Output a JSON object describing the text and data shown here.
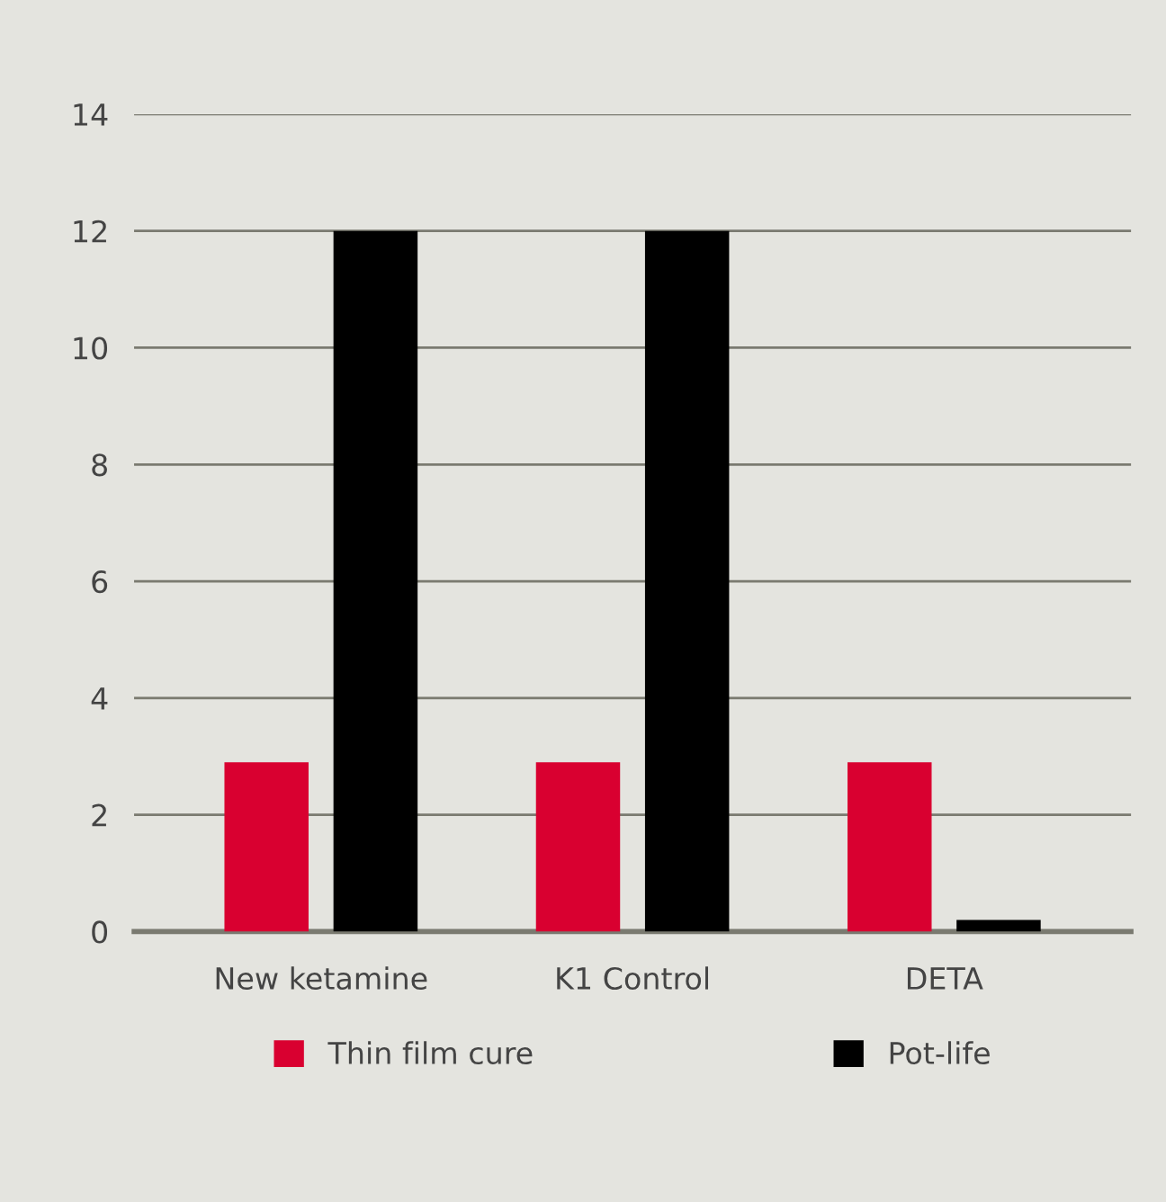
{
  "chart_data": {
    "type": "bar",
    "categories": [
      "New ketamine",
      "K1 Control",
      "DETA"
    ],
    "series": [
      {
        "name": "Thin film cure",
        "color": "#d90030",
        "values": [
          2.9,
          2.9,
          2.9
        ]
      },
      {
        "name": "Pot-life",
        "color": "#000000",
        "values": [
          12,
          12,
          0.2
        ]
      }
    ],
    "ylim": [
      0,
      14
    ],
    "yticks": [
      0,
      2,
      4,
      6,
      8,
      10,
      12,
      14
    ],
    "grid": "y",
    "legend": "bottom"
  }
}
